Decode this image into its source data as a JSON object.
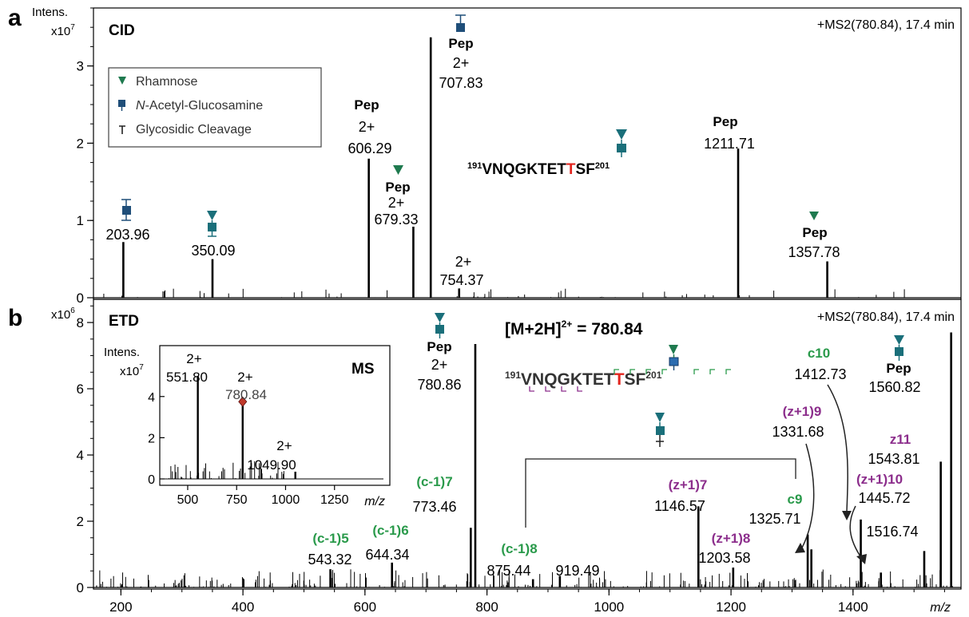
{
  "figure": {
    "x_axis": {
      "label": "m/z",
      "ticks": [
        "200",
        "400",
        "600",
        "800",
        "1000",
        "1200",
        "1400"
      ],
      "range": [
        155,
        1577
      ]
    },
    "colors": {
      "rhamnose": "#1f7a4f",
      "glcnac": "#1f4e79",
      "green_label": "#2a9a4b",
      "purple_label": "#8c2e8c",
      "highlight_t": "#e3261f",
      "glycan_square_alt": "#1a6f7a"
    }
  },
  "panel_a": {
    "letter": "a",
    "intens_label": "Intens.",
    "scale_label": "x10",
    "scale_exp": "7",
    "mode": "CID",
    "scan_info": "+MS2(780.84), 17.4 min",
    "y_ticks": [
      "0",
      "1",
      "2",
      "3"
    ],
    "y_range": [
      0,
      3.75
    ],
    "legend": {
      "rhamnose": "Rhamnose",
      "glcnac_italic": "N",
      "glcnac_rest": "-Acetyl-Glucosamine",
      "cleavage": "Glycosidic Cleavage"
    },
    "sequence": {
      "start": "191",
      "pre": "VNQGKTET",
      "t": "T",
      "post": "SF",
      "end": "201"
    },
    "labels": {
      "l20396": "203.96",
      "l35009": "350.09",
      "l60629a": "Pep",
      "l60629b": "2+",
      "l60629c": "606.29",
      "l67933a": "Pep",
      "l67933b": "2+",
      "l67933c": "679.33",
      "l70783a": "Pep",
      "l70783b": "2+",
      "l70783c": "707.83",
      "l75437a": "2+",
      "l75437b": "754.37",
      "l121171a": "Pep",
      "l121171b": "1211.71",
      "l135778a": "Pep",
      "l135778b": "1357.78"
    }
  },
  "panel_b": {
    "letter": "b",
    "scale_label": "x10",
    "scale_exp": "6",
    "mode": "ETD",
    "scan_info": "+MS2(780.84), 17.4 min",
    "precursor": "[M+2H]",
    "precursor_charge": "2+",
    "precursor_value": " = 780.84",
    "y_ticks": [
      "0",
      "2",
      "4",
      "6",
      "8"
    ],
    "y_range": [
      0,
      8.7
    ],
    "sequence": {
      "start": "191",
      "pre": "VNQGKTET",
      "t": "T",
      "post": "SF",
      "end": "201"
    },
    "labels": {
      "c15": "(c-1)5",
      "c15v": "543.32",
      "c16": "(c-1)6",
      "c16v": "644.34",
      "c17": "(c-1)7",
      "c17v": "773.46",
      "pep780a": "Pep",
      "pep780b": "2+",
      "pep780c": "780.86",
      "c18": "(c-1)8",
      "c18v": "875.44",
      "v91949": "919.49",
      "z17": "(z+1)7",
      "z17v": "1146.57",
      "z18": "(z+1)8",
      "z18v": "1203.58",
      "c9": "c9",
      "c9v": "1325.71",
      "z19": "(z+1)9",
      "z19v": "1331.68",
      "c10": "c10",
      "c10v": "1412.73",
      "z110": "(z+1)10",
      "z110v": "1445.72",
      "v151674": "1516.74",
      "z11": "z11",
      "z11v": "1543.81",
      "pep1560a": "Pep",
      "pep1560b": "1560.82"
    },
    "inset": {
      "intens_label": "Intens.",
      "scale_label": "x10",
      "scale_exp": "7",
      "mode": "MS",
      "x_label": "m/z",
      "x_ticks": [
        "500",
        "750",
        "1000",
        "1250"
      ],
      "y_ticks": [
        "0",
        "2",
        "4"
      ],
      "l551a": "2+",
      "l551b": "551.80",
      "l780a": "2+",
      "l780b": "780.84",
      "l1049a": "2+",
      "l1049b": "1049.90"
    }
  },
  "chart_data": [
    {
      "type": "bar",
      "title": "CID",
      "xlabel": "m/z",
      "ylabel": "Intens. x10^7",
      "xlim": [
        155,
        1577
      ],
      "ylim": [
        0,
        3.75
      ],
      "peaks": [
        {
          "x": 203.96,
          "y": 0.72
        },
        {
          "x": 350.09,
          "y": 0.5
        },
        {
          "x": 606.29,
          "y": 1.8
        },
        {
          "x": 679.33,
          "y": 0.92
        },
        {
          "x": 707.83,
          "y": 3.37
        },
        {
          "x": 754.37,
          "y": 0.12
        },
        {
          "x": 1211.71,
          "y": 1.93
        },
        {
          "x": 1357.78,
          "y": 0.47
        }
      ]
    },
    {
      "type": "bar",
      "title": "ETD",
      "xlabel": "m/z",
      "ylabel": "x10^6",
      "xlim": [
        155,
        1577
      ],
      "ylim": [
        0,
        8.7
      ],
      "peaks": [
        {
          "x": 543.32,
          "y": 0.55
        },
        {
          "x": 644.34,
          "y": 0.75
        },
        {
          "x": 773.46,
          "y": 1.8
        },
        {
          "x": 780.86,
          "y": 7.35
        },
        {
          "x": 875.44,
          "y": 0.25
        },
        {
          "x": 919.49,
          "y": 0.35
        },
        {
          "x": 1146.57,
          "y": 2.45
        },
        {
          "x": 1203.58,
          "y": 0.6
        },
        {
          "x": 1325.71,
          "y": 1.6
        },
        {
          "x": 1331.68,
          "y": 1.15
        },
        {
          "x": 1412.73,
          "y": 2.05
        },
        {
          "x": 1445.72,
          "y": 0.45
        },
        {
          "x": 1516.74,
          "y": 1.1
        },
        {
          "x": 1543.81,
          "y": 3.8
        },
        {
          "x": 1560.82,
          "y": 7.7
        }
      ]
    },
    {
      "type": "bar",
      "title": "MS",
      "xlabel": "m/z",
      "ylabel": "Intens. x10^7",
      "xlim": [
        390,
        1500
      ],
      "ylim": [
        0,
        6.2
      ],
      "peaks": [
        {
          "x": 551.8,
          "y": 5.0
        },
        {
          "x": 780.84,
          "y": 3.75
        },
        {
          "x": 1049.9,
          "y": 0.35
        }
      ]
    }
  ]
}
